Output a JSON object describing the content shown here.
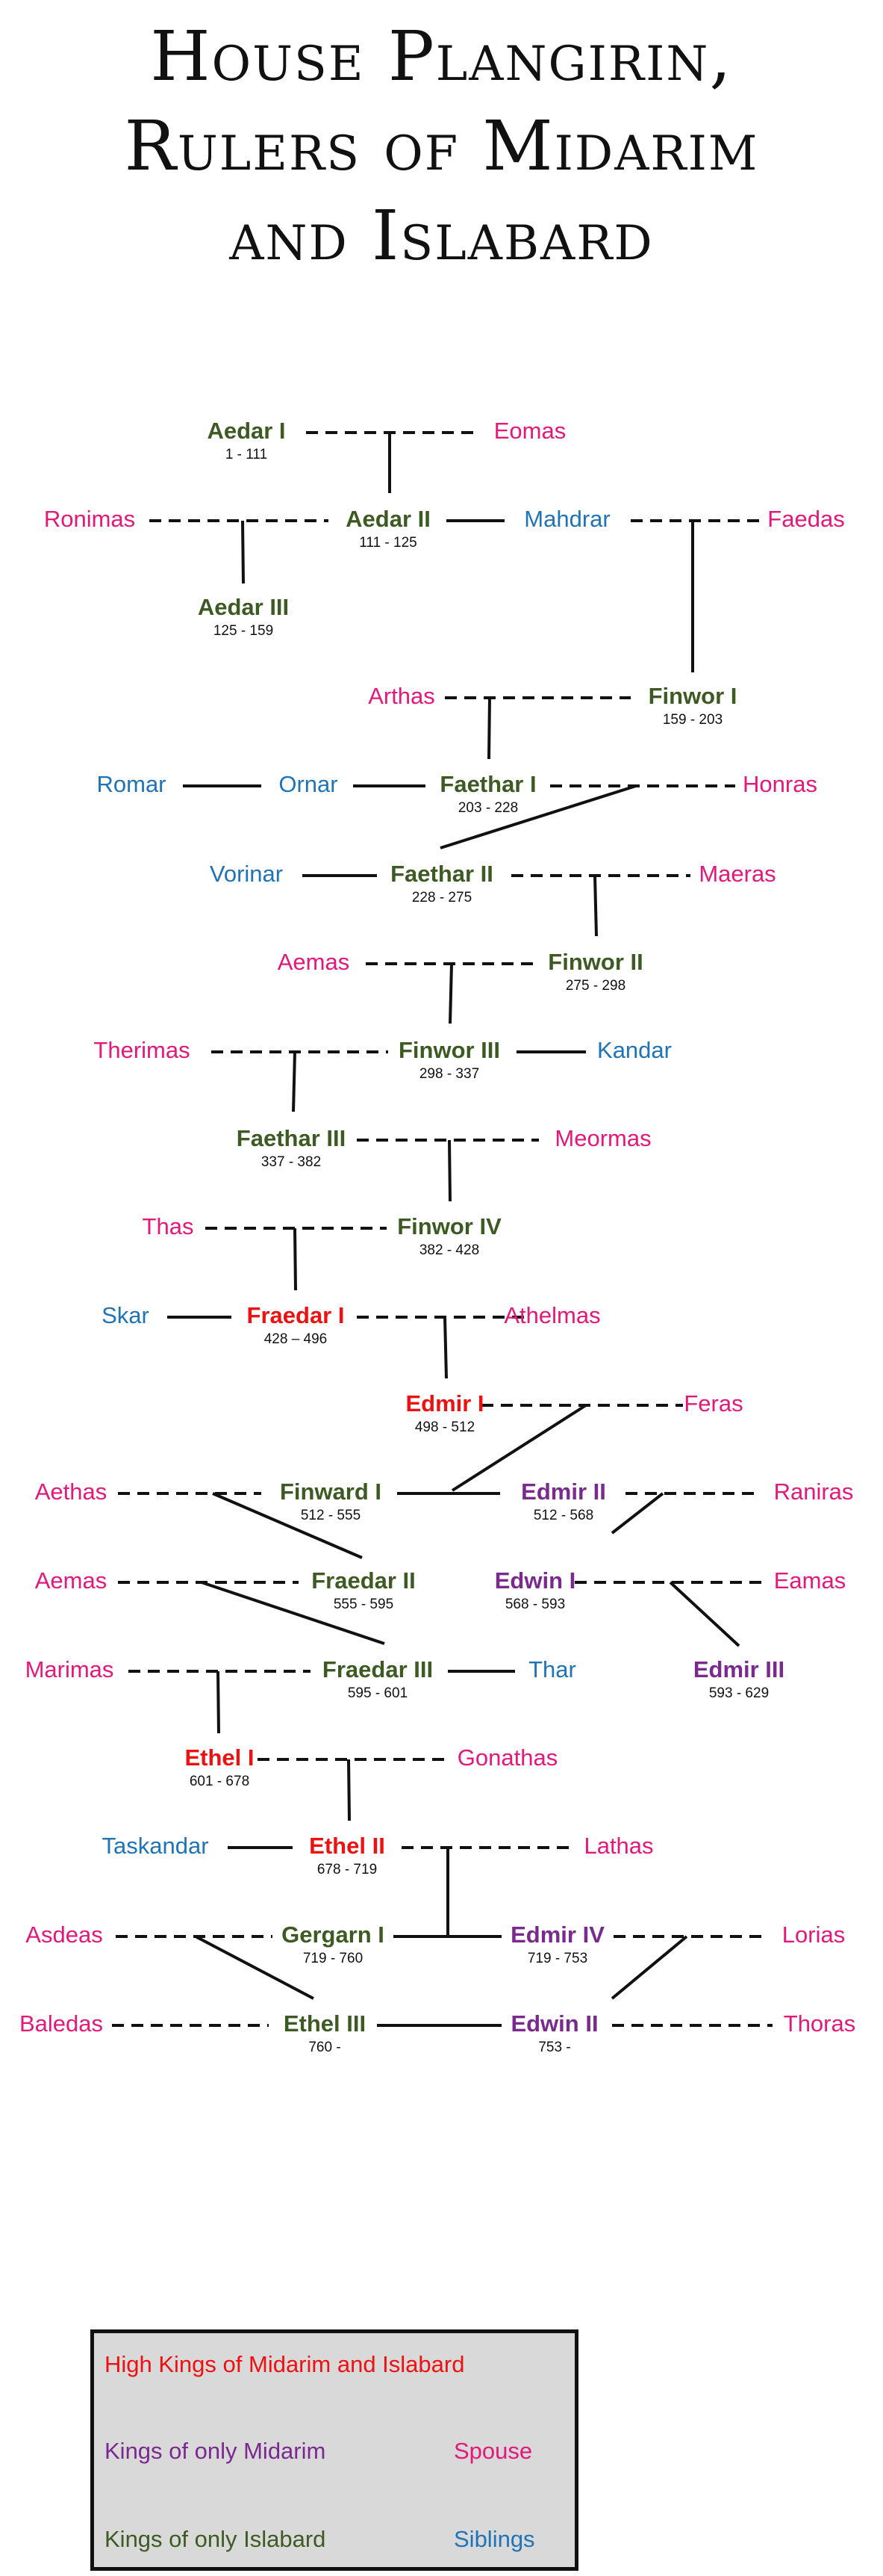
{
  "title": {
    "line1": "House Plangirin,",
    "line2": "Rulers of Midarim",
    "line3": "and Islabard"
  },
  "colors": {
    "high_king": "#ee1111",
    "midarim": "#7a2a8f",
    "islabard": "#3d5a23",
    "spouse": "#e4187a",
    "sibling": "#1f73b7"
  },
  "people": [
    {
      "id": "aedar1",
      "name": "Aedar I",
      "dates": "1 - 111",
      "role": "islabard"
    },
    {
      "id": "eomas",
      "name": "Eomas",
      "dates": "",
      "role": "spouse"
    },
    {
      "id": "ronimas",
      "name": "Ronimas",
      "dates": "",
      "role": "spouse"
    },
    {
      "id": "aedar2",
      "name": "Aedar II",
      "dates": "111 - 125",
      "role": "islabard"
    },
    {
      "id": "mahdrar",
      "name": "Mahdrar",
      "dates": "",
      "role": "sibling"
    },
    {
      "id": "faedas",
      "name": "Faedas",
      "dates": "",
      "role": "spouse"
    },
    {
      "id": "aedar3",
      "name": "Aedar III",
      "dates": "125 - 159",
      "role": "islabard"
    },
    {
      "id": "arthas",
      "name": "Arthas",
      "dates": "",
      "role": "spouse"
    },
    {
      "id": "finwor1",
      "name": "Finwor I",
      "dates": "159 - 203",
      "role": "islabard"
    },
    {
      "id": "romar",
      "name": "Romar",
      "dates": "",
      "role": "sibling"
    },
    {
      "id": "ornar",
      "name": "Ornar",
      "dates": "",
      "role": "sibling"
    },
    {
      "id": "faethar1",
      "name": "Faethar I",
      "dates": "203 - 228",
      "role": "islabard"
    },
    {
      "id": "honras",
      "name": "Honras",
      "dates": "",
      "role": "spouse"
    },
    {
      "id": "vorinar",
      "name": "Vorinar",
      "dates": "",
      "role": "sibling"
    },
    {
      "id": "faethar2",
      "name": "Faethar II",
      "dates": "228 - 275",
      "role": "islabard"
    },
    {
      "id": "maeras",
      "name": "Maeras",
      "dates": "",
      "role": "spouse"
    },
    {
      "id": "aemas1",
      "name": "Aemas",
      "dates": "",
      "role": "spouse"
    },
    {
      "id": "finwor2",
      "name": "Finwor II",
      "dates": "275 - 298",
      "role": "islabard"
    },
    {
      "id": "therimas",
      "name": "Therimas",
      "dates": "",
      "role": "spouse"
    },
    {
      "id": "finwor3",
      "name": "Finwor III",
      "dates": "298 - 337",
      "role": "islabard"
    },
    {
      "id": "kandar",
      "name": "Kandar",
      "dates": "",
      "role": "sibling"
    },
    {
      "id": "faethar3",
      "name": "Faethar III",
      "dates": "337 - 382",
      "role": "islabard"
    },
    {
      "id": "meormas",
      "name": "Meormas",
      "dates": "",
      "role": "spouse"
    },
    {
      "id": "thas",
      "name": "Thas",
      "dates": "",
      "role": "spouse"
    },
    {
      "id": "finwor4",
      "name": "Finwor IV",
      "dates": "382 - 428",
      "role": "islabard"
    },
    {
      "id": "skar",
      "name": "Skar",
      "dates": "",
      "role": "sibling"
    },
    {
      "id": "fraedar1",
      "name": "Fraedar I",
      "dates": "428 – 496",
      "role": "high_king"
    },
    {
      "id": "athelmas",
      "name": "Athelmas",
      "dates": "",
      "role": "spouse"
    },
    {
      "id": "edmir1",
      "name": "Edmir I",
      "dates": "498 - 512",
      "role": "high_king"
    },
    {
      "id": "feras",
      "name": "Feras",
      "dates": "",
      "role": "spouse"
    },
    {
      "id": "aethas",
      "name": "Aethas",
      "dates": "",
      "role": "spouse"
    },
    {
      "id": "finward1",
      "name": "Finward I",
      "dates": "512 - 555",
      "role": "islabard"
    },
    {
      "id": "edmir2",
      "name": "Edmir II",
      "dates": "512 - 568",
      "role": "midarim"
    },
    {
      "id": "raniras",
      "name": "Raniras",
      "dates": "",
      "role": "spouse"
    },
    {
      "id": "aemas2",
      "name": "Aemas",
      "dates": "",
      "role": "spouse"
    },
    {
      "id": "fraedar2",
      "name": "Fraedar II",
      "dates": "555 - 595",
      "role": "islabard"
    },
    {
      "id": "edwin1",
      "name": "Edwin I",
      "dates": "568 - 593",
      "role": "midarim"
    },
    {
      "id": "eamas",
      "name": "Eamas",
      "dates": "",
      "role": "spouse"
    },
    {
      "id": "marimas",
      "name": "Marimas",
      "dates": "",
      "role": "spouse"
    },
    {
      "id": "fraedar3",
      "name": "Fraedar III",
      "dates": "595 - 601",
      "role": "islabard"
    },
    {
      "id": "thar",
      "name": "Thar",
      "dates": "",
      "role": "sibling"
    },
    {
      "id": "edmir3",
      "name": "Edmir III",
      "dates": "593 - 629",
      "role": "midarim"
    },
    {
      "id": "ethel1",
      "name": "Ethel I",
      "dates": "601 - 678",
      "role": "high_king"
    },
    {
      "id": "gonathas",
      "name": "Gonathas",
      "dates": "",
      "role": "spouse"
    },
    {
      "id": "taskandar",
      "name": "Taskandar",
      "dates": "",
      "role": "sibling"
    },
    {
      "id": "ethel2",
      "name": "Ethel II",
      "dates": "678 - 719",
      "role": "high_king"
    },
    {
      "id": "lathas",
      "name": "Lathas",
      "dates": "",
      "role": "spouse"
    },
    {
      "id": "asdeas",
      "name": "Asdeas",
      "dates": "",
      "role": "spouse"
    },
    {
      "id": "gergarn1",
      "name": "Gergarn I",
      "dates": "719 - 760",
      "role": "islabard"
    },
    {
      "id": "edmir4",
      "name": "Edmir IV",
      "dates": "719 - 753",
      "role": "midarim"
    },
    {
      "id": "lorias",
      "name": "Lorias",
      "dates": "",
      "role": "spouse"
    },
    {
      "id": "baledas",
      "name": "Baledas",
      "dates": "",
      "role": "spouse"
    },
    {
      "id": "ethel3",
      "name": "Ethel III",
      "dates": "760 -",
      "role": "islabard"
    },
    {
      "id": "edwin2",
      "name": "Edwin II",
      "dates": "753 -",
      "role": "midarim"
    },
    {
      "id": "thoras",
      "name": "Thoras",
      "dates": "",
      "role": "spouse"
    }
  ],
  "legend": {
    "high_kings": "High Kings of Midarim and Islabard",
    "midarim_only": "Kings of only Midarim",
    "islabard_only": "Kings of only Islabard",
    "spouse": "Spouse",
    "siblings": "Siblings"
  }
}
